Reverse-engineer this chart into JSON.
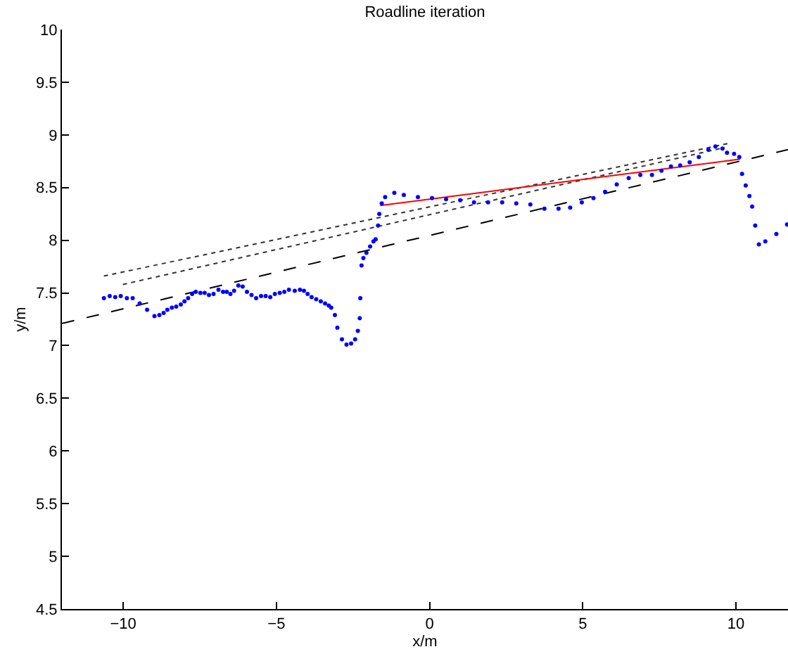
{
  "chart_data": {
    "type": "scatter",
    "title": "Roadline iteration",
    "xlabel": "x/m",
    "ylabel": "y/m",
    "xlim": [
      -12,
      11.7
    ],
    "ylim": [
      4.5,
      10
    ],
    "xticks": [
      -10,
      -5,
      0,
      5,
      10
    ],
    "yticks": [
      4.5,
      5,
      5.5,
      6,
      6.5,
      7,
      7.5,
      8,
      8.5,
      9,
      9.5,
      10
    ],
    "series": [
      {
        "type": "line",
        "color": "#000000",
        "line_style": "dashed",
        "marker": "none",
        "x": [
          -12,
          11.7
        ],
        "values": [
          7.21,
          8.86
        ]
      },
      {
        "type": "line",
        "color": "#333333",
        "line_style": "dotted",
        "marker": "none",
        "x": [
          -10.63,
          9.78
        ],
        "values": [
          7.66,
          8.92
        ]
      },
      {
        "type": "line",
        "color": "#333333",
        "line_style": "dotted",
        "marker": "none",
        "x": [
          -10.01,
          9.63
        ],
        "values": [
          7.58,
          8.88
        ]
      },
      {
        "type": "line",
        "color": "#ff0000",
        "line_style": "solid",
        "marker": "none",
        "x": [
          -1.61,
          10.14
        ],
        "values": [
          8.33,
          8.77
        ]
      },
      {
        "color": "#0000ff",
        "marker": "circle",
        "x": [
          -10.63,
          -10.44,
          -10.26,
          -10.08,
          -9.88,
          -9.69,
          -9.46,
          -9.22,
          -8.98,
          -8.82,
          -8.68,
          -8.56,
          -8.41,
          -8.27,
          -8.12,
          -8.0,
          -7.88,
          -7.75,
          -7.63,
          -7.48,
          -7.34,
          -7.2,
          -7.05,
          -6.89,
          -6.74,
          -6.62,
          -6.5,
          -6.38,
          -6.24,
          -6.1,
          -5.96,
          -5.81,
          -5.66,
          -5.5,
          -5.35,
          -5.2,
          -5.05,
          -4.89,
          -4.74,
          -4.59,
          -4.4,
          -4.23,
          -4.1,
          -3.98,
          -3.85,
          -3.7,
          -3.55,
          -3.41,
          -3.29,
          -3.21,
          -3.09,
          -3.01,
          -2.86,
          -2.71,
          -2.56,
          -2.43,
          -2.34,
          -2.28,
          -2.26,
          -2.22,
          -2.16,
          -2.06,
          -1.94,
          -1.83,
          -1.76,
          -1.68,
          -1.64,
          -1.56,
          -1.45,
          -1.15,
          -0.84,
          -0.38,
          0.08,
          0.54,
          1.0,
          1.45,
          1.91,
          2.37,
          2.83,
          3.29,
          3.75,
          4.21,
          4.59,
          4.97,
          5.35,
          5.73,
          6.11,
          6.5,
          6.88,
          7.26,
          7.57,
          7.88,
          8.18,
          8.49,
          8.79,
          9.1,
          9.33,
          9.56,
          9.71,
          9.94,
          10.11,
          10.2,
          10.32,
          10.44,
          10.53,
          10.63,
          10.75,
          10.96,
          11.32,
          11.67
        ],
        "values": [
          7.45,
          7.47,
          7.46,
          7.47,
          7.45,
          7.45,
          7.4,
          7.34,
          7.28,
          7.29,
          7.31,
          7.34,
          7.36,
          7.37,
          7.39,
          7.42,
          7.45,
          7.49,
          7.51,
          7.5,
          7.5,
          7.48,
          7.49,
          7.53,
          7.51,
          7.51,
          7.49,
          7.52,
          7.57,
          7.56,
          7.51,
          7.48,
          7.45,
          7.47,
          7.47,
          7.46,
          7.49,
          7.5,
          7.51,
          7.53,
          7.52,
          7.53,
          7.52,
          7.49,
          7.46,
          7.44,
          7.42,
          7.4,
          7.38,
          7.36,
          7.29,
          7.17,
          7.06,
          7.01,
          7.02,
          7.06,
          7.14,
          7.26,
          7.45,
          7.76,
          7.83,
          7.88,
          7.94,
          7.99,
          8.01,
          8.14,
          8.25,
          8.35,
          8.41,
          8.45,
          8.43,
          8.41,
          8.4,
          8.39,
          8.38,
          8.36,
          8.36,
          8.36,
          8.35,
          8.34,
          8.3,
          8.3,
          8.31,
          8.36,
          8.4,
          8.46,
          8.53,
          8.59,
          8.62,
          8.62,
          8.66,
          8.7,
          8.71,
          8.74,
          8.79,
          8.86,
          8.89,
          8.87,
          8.83,
          8.82,
          8.79,
          8.63,
          8.52,
          8.42,
          8.32,
          8.14,
          7.96,
          7.99,
          8.06,
          8.15
        ]
      }
    ]
  }
}
